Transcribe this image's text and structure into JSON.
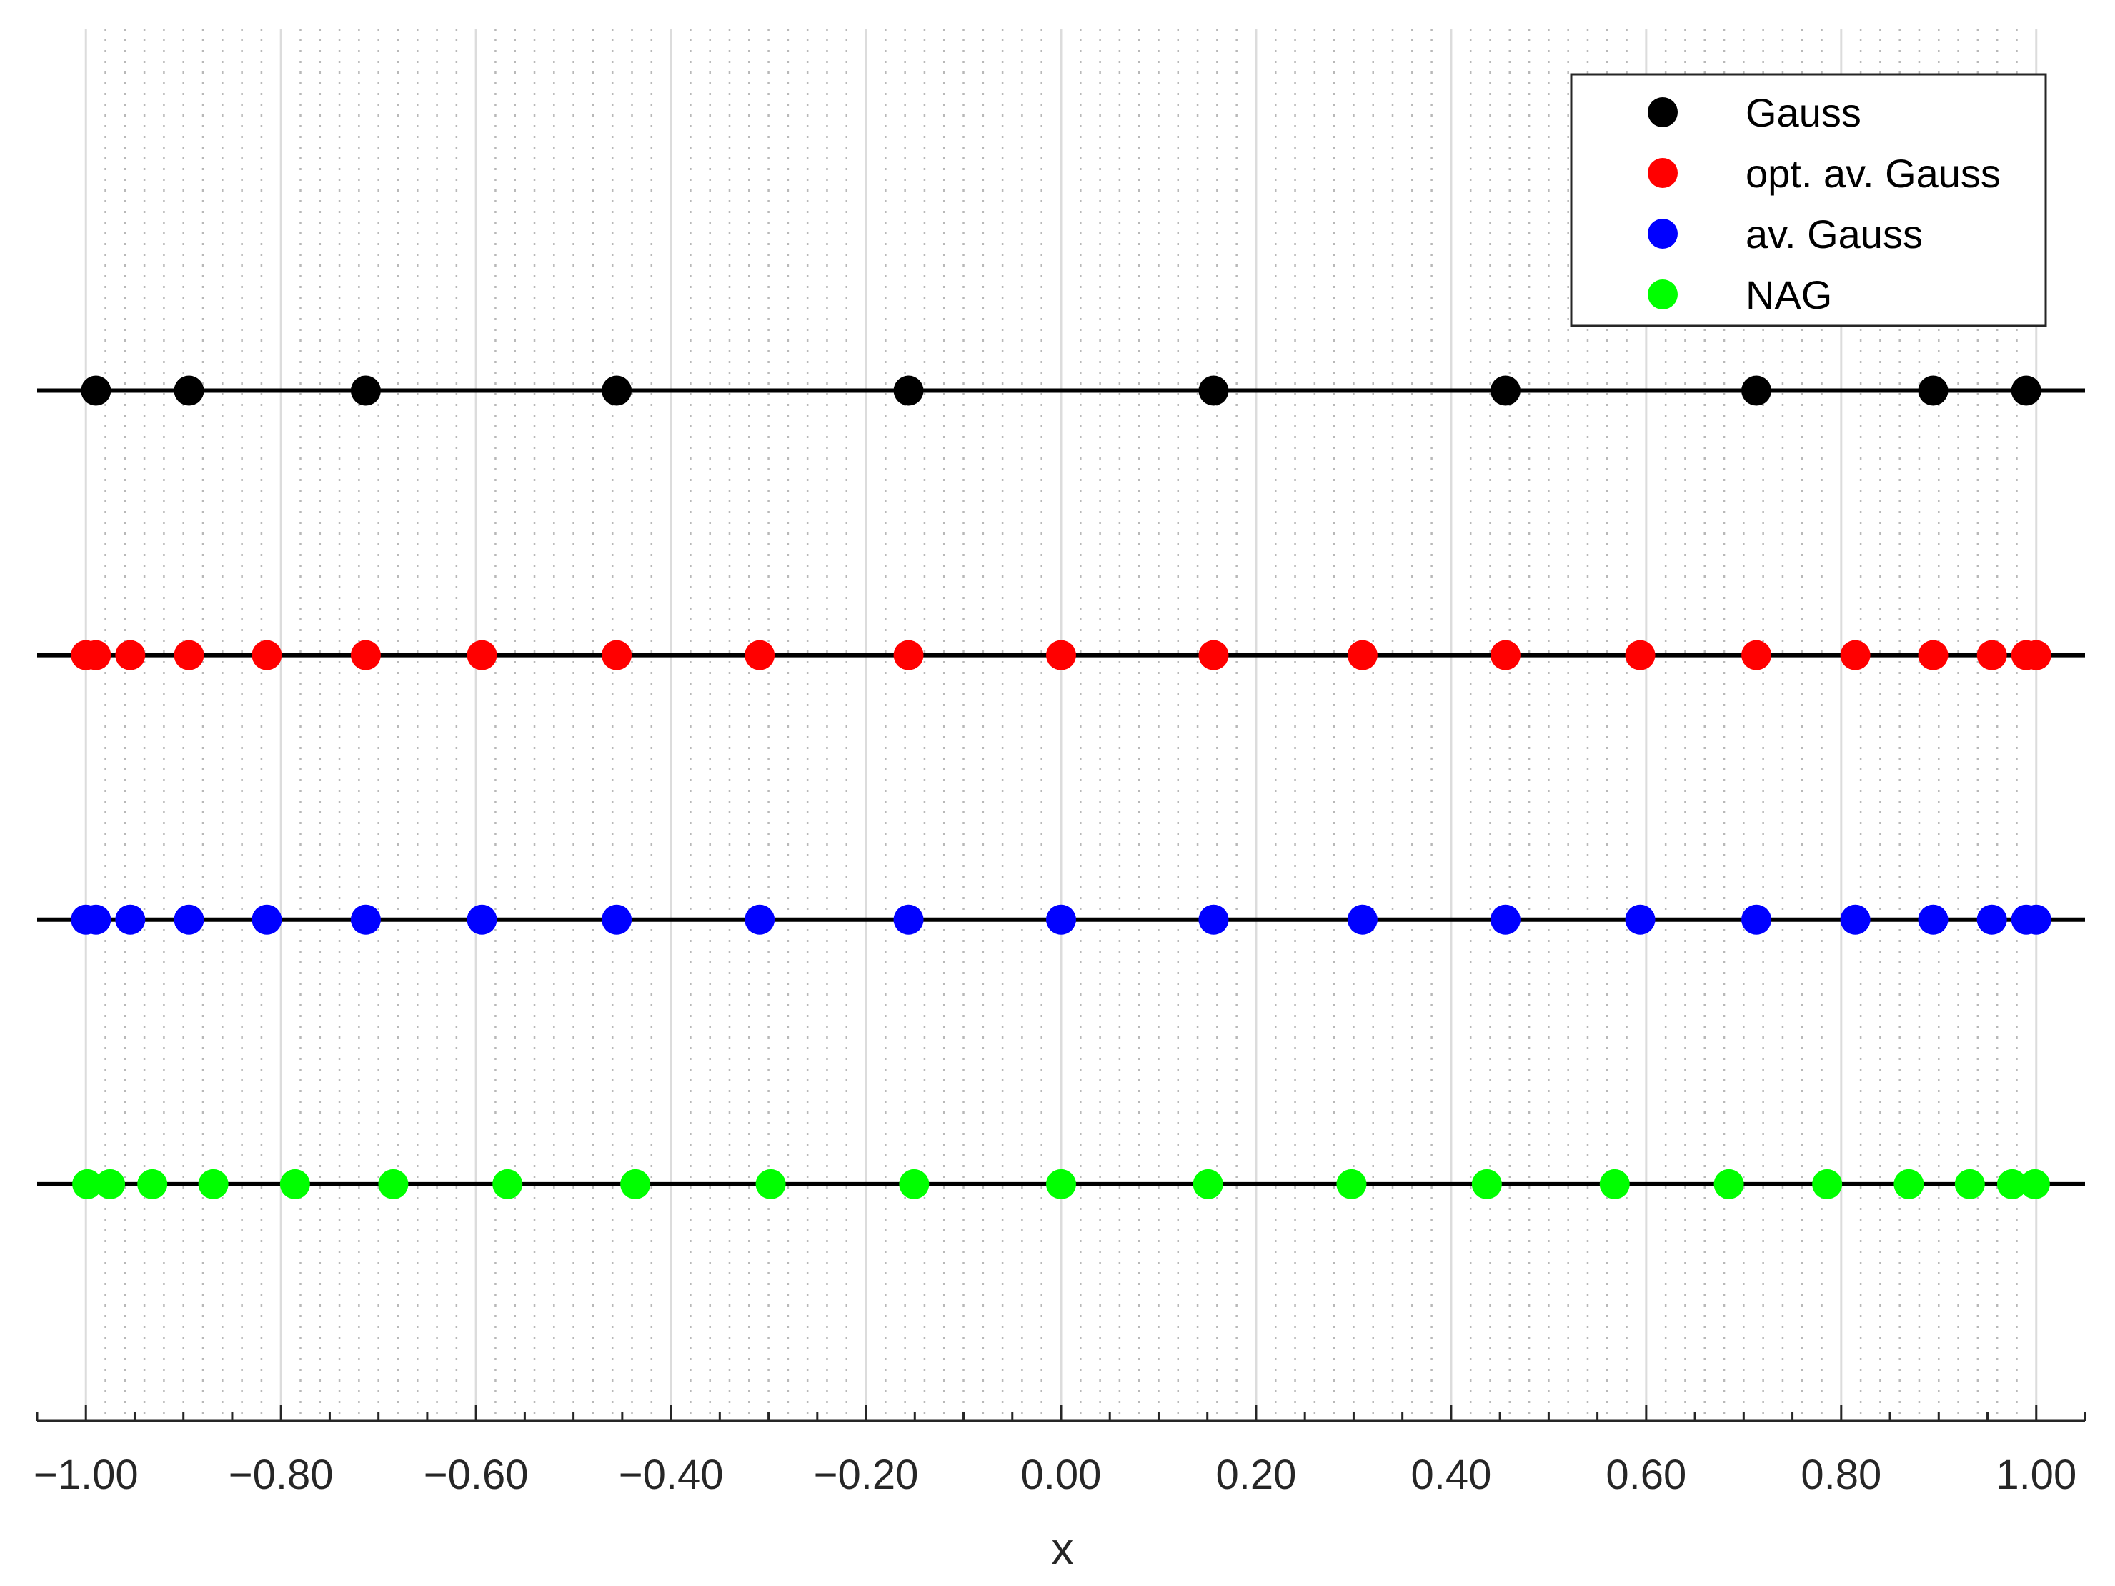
{
  "chart_data": {
    "type": "scatter",
    "title": "",
    "xlabel": "x",
    "ylabel": "",
    "xlim": [
      -1.05,
      1.05
    ],
    "ylim": [
      0,
      5
    ],
    "grid": true,
    "minor_grid": true,
    "legend_position": "top-right",
    "x_ticks": [
      "−1.00",
      "−0.80",
      "−0.60",
      "−0.40",
      "−0.20",
      "0.00",
      "0.20",
      "0.40",
      "0.60",
      "0.80",
      "1.00"
    ],
    "x_tick_values": [
      -1.0,
      -0.8,
      -0.6,
      -0.4,
      -0.2,
      0.0,
      0.2,
      0.4,
      0.6,
      0.8,
      1.0
    ],
    "series": [
      {
        "name": "Gauss",
        "color": "#000000",
        "level": 3.7,
        "x": [
          -0.9897,
          -0.8943,
          -0.713,
          -0.4557,
          -0.1564,
          0.1564,
          0.4557,
          0.713,
          0.8943,
          0.9897
        ]
      },
      {
        "name": "opt. av. Gauss",
        "color": "#ff0000",
        "level": 2.75,
        "x": [
          -1.0,
          -0.9897,
          -0.9545,
          -0.8943,
          -0.8145,
          -0.713,
          -0.5939,
          -0.4557,
          -0.3091,
          -0.1564,
          0.0,
          0.1564,
          0.3091,
          0.4557,
          0.5939,
          0.713,
          0.8145,
          0.8943,
          0.9545,
          0.9897,
          1.0
        ]
      },
      {
        "name": "av. Gauss",
        "color": "#0000ff",
        "level": 1.8,
        "x": [
          -1.0,
          -0.9897,
          -0.9545,
          -0.8943,
          -0.8145,
          -0.713,
          -0.5939,
          -0.4557,
          -0.3091,
          -0.1564,
          0.0,
          0.1564,
          0.3091,
          0.4557,
          0.5939,
          0.713,
          0.8145,
          0.8943,
          0.9545,
          0.9897,
          1.0
        ]
      },
      {
        "name": "NAG",
        "color": "#00ff00",
        "level": 0.85,
        "x": [
          -0.9986,
          -0.9752,
          -0.9319,
          -0.8693,
          -0.7856,
          -0.6848,
          -0.5677,
          -0.4366,
          -0.2978,
          -0.1507,
          0.0,
          0.1507,
          0.2978,
          0.4366,
          0.5677,
          0.6848,
          0.7856,
          0.8693,
          0.9319,
          0.9752,
          0.9986
        ]
      }
    ]
  }
}
